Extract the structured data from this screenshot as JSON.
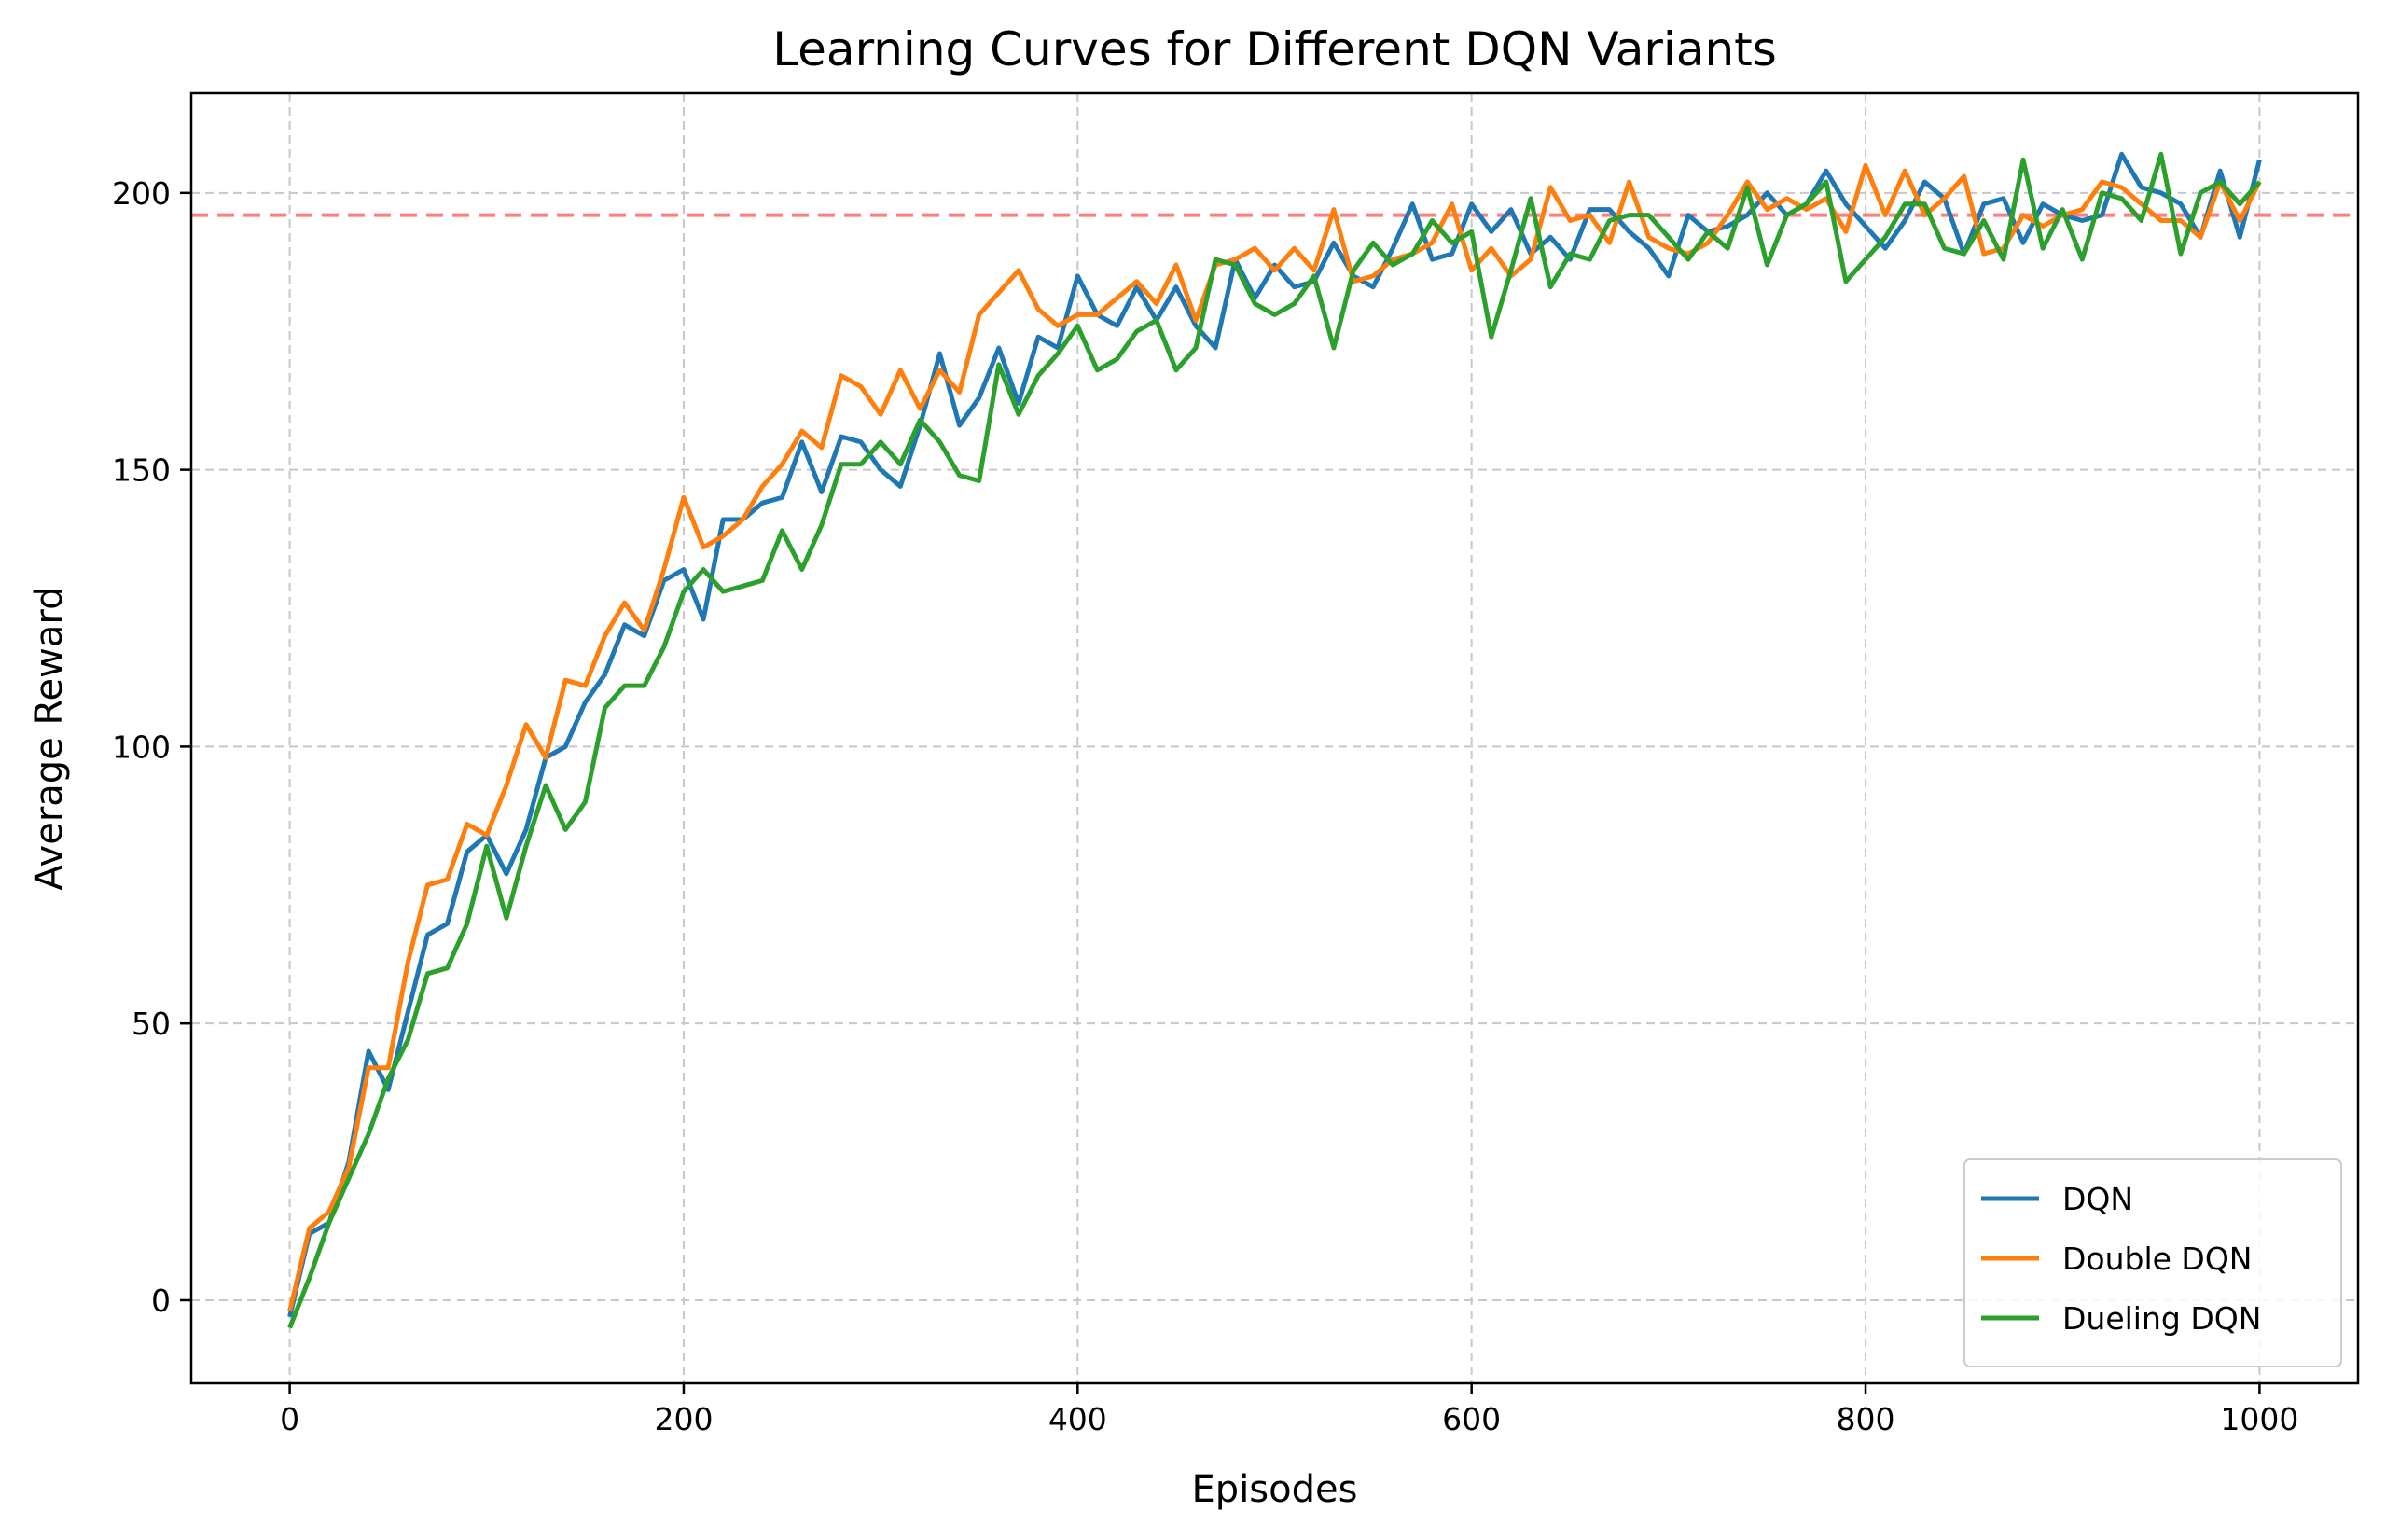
{
  "chart_data": {
    "type": "line",
    "title": "Learning Curves for Different DQN Variants",
    "xlabel": "Episodes",
    "ylabel": "Average Reward",
    "xlim": [
      -50,
      1050
    ],
    "ylim": [
      -15,
      218
    ],
    "xticks": [
      0,
      200,
      400,
      600,
      800,
      1000
    ],
    "yticks": [
      0,
      50,
      100,
      150,
      200
    ],
    "grid": true,
    "legend_position": "bottom-right",
    "reference_line": {
      "y": 196,
      "color": "#ff7f7f",
      "style": "dashed"
    },
    "x": [
      0,
      10,
      20,
      30,
      40,
      50,
      60,
      70,
      80,
      90,
      100,
      110,
      120,
      130,
      140,
      150,
      160,
      170,
      180,
      190,
      200,
      210,
      220,
      230,
      240,
      250,
      260,
      270,
      280,
      290,
      300,
      310,
      320,
      330,
      340,
      350,
      360,
      370,
      380,
      390,
      400,
      410,
      420,
      430,
      440,
      450,
      460,
      470,
      480,
      490,
      500,
      510,
      520,
      530,
      540,
      550,
      560,
      570,
      580,
      590,
      600,
      610,
      620,
      630,
      640,
      650,
      660,
      670,
      680,
      690,
      700,
      710,
      720,
      730,
      740,
      750,
      760,
      770,
      780,
      790,
      800,
      810,
      820,
      830,
      840,
      850,
      860,
      870,
      880,
      890,
      900,
      910,
      920,
      930,
      940,
      950,
      960,
      970,
      980,
      990,
      1000
    ],
    "series": [
      {
        "name": "DQN",
        "color": "#1f77b4",
        "values": [
          -3,
          12,
          14,
          25,
          45,
          38,
          52,
          66,
          68,
          81,
          84,
          77,
          85,
          98,
          100,
          108,
          113,
          122,
          120,
          130,
          132,
          123,
          141,
          141,
          144,
          145,
          155,
          146,
          156,
          155,
          150,
          147,
          158,
          171,
          158,
          163,
          172,
          162,
          174,
          172,
          185,
          178,
          176,
          183,
          177,
          183,
          176,
          172,
          188,
          181,
          187,
          183,
          184,
          191,
          185,
          183,
          190,
          198,
          188,
          189,
          198,
          193,
          197,
          189,
          192,
          188,
          197,
          197,
          193,
          190,
          185,
          196,
          193,
          194,
          196,
          200,
          196,
          198,
          204,
          198,
          194,
          190,
          195,
          202,
          199,
          189,
          198,
          199,
          191,
          198,
          196,
          195,
          196,
          207,
          201,
          200,
          198,
          192,
          204,
          192,
          206
        ]
      },
      {
        "name": "Double DQN",
        "color": "#ff7f0e",
        "values": [
          -2,
          13,
          16,
          24,
          42,
          42,
          61,
          75,
          76,
          86,
          84,
          93,
          104,
          98,
          112,
          111,
          120,
          126,
          121,
          132,
          145,
          136,
          138,
          141,
          147,
          151,
          157,
          154,
          167,
          165,
          160,
          168,
          161,
          168,
          164,
          178,
          182,
          186,
          179,
          176,
          178,
          178,
          181,
          184,
          180,
          187,
          177,
          187,
          188,
          190,
          186,
          190,
          186,
          197,
          184,
          185,
          188,
          189,
          191,
          198,
          186,
          190,
          185,
          188,
          201,
          195,
          196,
          191,
          202,
          192,
          190,
          189,
          191,
          196,
          202,
          197,
          199,
          197,
          199,
          193,
          205,
          196,
          204,
          196,
          199,
          203,
          189,
          190,
          196,
          194,
          196,
          197,
          202,
          201,
          198,
          195,
          195,
          192,
          202,
          195,
          202
        ]
      },
      {
        "name": "Dueling DQN",
        "color": "#2ca02c",
        "values": [
          -5,
          4,
          14,
          22,
          30,
          40,
          47,
          59,
          60,
          68,
          82,
          69,
          82,
          93,
          85,
          90,
          107,
          111,
          111,
          118,
          128,
          132,
          128,
          129,
          130,
          139,
          132,
          140,
          151,
          151,
          155,
          151,
          159,
          155,
          149,
          148,
          169,
          160,
          167,
          171,
          176,
          168,
          170,
          175,
          177,
          168,
          172,
          188,
          187,
          180,
          178,
          180,
          185,
          172,
          186,
          191,
          187,
          189,
          195,
          191,
          193,
          174,
          186,
          199,
          183,
          189,
          188,
          195,
          196,
          196,
          192,
          188,
          193,
          190,
          201,
          187,
          196,
          198,
          202,
          184,
          188,
          192,
          198,
          198,
          190,
          189,
          195,
          188,
          206,
          190,
          197,
          188,
          200,
          199,
          195,
          207,
          189,
          200,
          202,
          198,
          202
        ]
      }
    ]
  }
}
